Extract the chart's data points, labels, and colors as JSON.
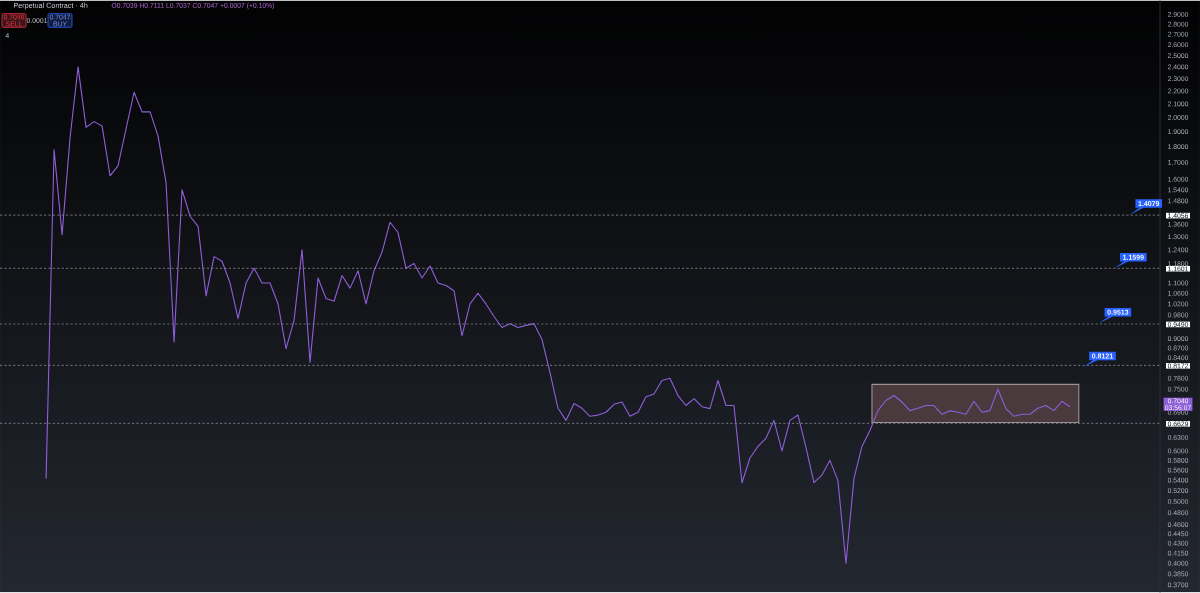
{
  "chart_data": {
    "type": "line",
    "title": "Perpetual Contract · 4h",
    "subtitle": "O0.7039 H0.7111 L0.7037 C0.7047 +0.0007 (+0.10%)",
    "categories": [
      null,
      null,
      null,
      null,
      null,
      null,
      null,
      null,
      null,
      null,
      null,
      null,
      null,
      null,
      null,
      null,
      null,
      null,
      null,
      null,
      null,
      null,
      null,
      null,
      null,
      null,
      null,
      null,
      null,
      null,
      null,
      null,
      null,
      null,
      null,
      null,
      null,
      null,
      null,
      null,
      null,
      null,
      null,
      null,
      null,
      null,
      null,
      null,
      null,
      null,
      null,
      null,
      null,
      null,
      null,
      null,
      null,
      null,
      null,
      null,
      null,
      null,
      null,
      null,
      null,
      null,
      null,
      null,
      null,
      null,
      null,
      null,
      null,
      null,
      null,
      null,
      null,
      null,
      null,
      null,
      null,
      null,
      null,
      null,
      null,
      null,
      null,
      null,
      null,
      null,
      null,
      null,
      null,
      null,
      null,
      null,
      null,
      null,
      null,
      null,
      null,
      null,
      null,
      null,
      null,
      null,
      null,
      null,
      null,
      null,
      null,
      null,
      null,
      null,
      null,
      null,
      null,
      null,
      null,
      null,
      null,
      null,
      null,
      null,
      null,
      null,
      null,
      null,
      null
    ],
    "values": [
      0.543,
      1.78,
      1.31,
      1.86,
      2.4,
      1.93,
      1.97,
      1.94,
      1.62,
      1.68,
      1.92,
      2.19,
      2.04,
      2.04,
      1.87,
      1.58,
      0.889,
      1.54,
      1.4,
      1.35,
      1.05,
      1.21,
      1.19,
      1.1,
      0.968,
      1.1,
      1.16,
      1.1,
      1.1,
      1.02,
      0.868,
      0.961,
      1.24,
      0.826,
      1.12,
      1.04,
      1.03,
      1.13,
      1.08,
      1.15,
      1.02,
      1.15,
      1.23,
      1.37,
      1.32,
      1.16,
      1.18,
      1.12,
      1.17,
      1.1,
      1.09,
      1.07,
      0.91,
      1.02,
      1.06,
      1.02,
      0.975,
      0.937,
      0.95,
      0.937,
      0.944,
      0.95,
      0.897,
      0.796,
      0.7,
      0.67,
      0.712,
      0.7,
      0.68,
      0.683,
      0.69,
      0.71,
      0.716,
      0.68,
      0.69,
      0.73,
      0.737,
      0.774,
      0.78,
      0.733,
      0.707,
      0.725,
      0.704,
      0.699,
      0.774,
      0.707,
      0.707,
      0.535,
      0.585,
      0.61,
      0.628,
      0.67,
      0.6,
      0.67,
      0.683,
      0.608,
      0.535,
      0.55,
      0.58,
      0.539,
      0.4,
      0.543,
      0.61,
      0.646,
      0.694,
      0.72,
      0.733,
      0.716,
      0.694,
      0.7,
      0.707,
      0.707,
      0.685,
      0.694,
      0.69,
      0.685,
      0.718,
      0.69,
      0.694,
      0.75,
      0.699,
      0.68,
      0.685,
      0.685,
      0.7,
      0.707,
      0.694,
      0.718,
      0.704
    ],
    "color": "#8f5fd8",
    "log": true,
    "ylim": [
      0.36,
      3.05
    ],
    "yticks": [
      {
        "value": 2.9,
        "label": "2.9000"
      },
      {
        "value": 2.8,
        "label": "2.8000"
      },
      {
        "value": 2.7,
        "label": "2.7000"
      },
      {
        "value": 2.6,
        "label": "2.6000"
      },
      {
        "value": 2.5,
        "label": "2.5000"
      },
      {
        "value": 2.4,
        "label": "2.4000"
      },
      {
        "value": 2.3,
        "label": "2.3000"
      },
      {
        "value": 2.2,
        "label": "2.2000"
      },
      {
        "value": 2.1,
        "label": "2.1000"
      },
      {
        "value": 2.0,
        "label": "2.0000"
      },
      {
        "value": 1.9,
        "label": "1.9000"
      },
      {
        "value": 1.8,
        "label": "1.8000"
      },
      {
        "value": 1.7,
        "label": "1.7000"
      },
      {
        "value": 1.6,
        "label": "1.6000"
      },
      {
        "value": 1.54,
        "label": "1.5400"
      },
      {
        "value": 1.48,
        "label": "1.4800"
      },
      {
        "value": 1.36,
        "label": "1.3600"
      },
      {
        "value": 1.3,
        "label": "1.3000"
      },
      {
        "value": 1.24,
        "label": "1.2400"
      },
      {
        "value": 1.18,
        "label": "1.1800"
      },
      {
        "value": 1.1,
        "label": "1.1000"
      },
      {
        "value": 1.06,
        "label": "1.0600"
      },
      {
        "value": 1.02,
        "label": "1.0200"
      },
      {
        "value": 0.98,
        "label": "0.9800"
      },
      {
        "value": 0.9,
        "label": "0.9000"
      },
      {
        "value": 0.87,
        "label": "0.8700"
      },
      {
        "value": 0.84,
        "label": "0.8400"
      },
      {
        "value": 0.78,
        "label": "0.7800"
      },
      {
        "value": 0.75,
        "label": "0.7500"
      },
      {
        "value": 0.69,
        "label": "0.6900"
      },
      {
        "value": 0.63,
        "label": "0.6300"
      },
      {
        "value": 0.6,
        "label": "0.6000"
      },
      {
        "value": 0.58,
        "label": "0.5800"
      },
      {
        "value": 0.56,
        "label": "0.5600"
      },
      {
        "value": 0.54,
        "label": "0.5400"
      },
      {
        "value": 0.52,
        "label": "0.5200"
      },
      {
        "value": 0.5,
        "label": "0.5000"
      },
      {
        "value": 0.48,
        "label": "0.4800"
      },
      {
        "value": 0.46,
        "label": "0.4600"
      },
      {
        "value": 0.445,
        "label": "0.4450"
      },
      {
        "value": 0.43,
        "label": "0.4300"
      },
      {
        "value": 0.415,
        "label": "0.4150"
      },
      {
        "value": 0.4,
        "label": "0.4000"
      },
      {
        "value": 0.385,
        "label": "0.3850"
      },
      {
        "value": 0.37,
        "label": "0.3700"
      }
    ],
    "tick_labels": "y",
    "ref_lines": [
      {
        "axis": "y",
        "value": 1.4056,
        "label": "1.4056",
        "color": "#8a8e99",
        "line_style": "dashed"
      },
      {
        "axis": "y",
        "value": 1.1601,
        "label": "1.1601",
        "color": "#8a8e99",
        "line_style": "dashed"
      },
      {
        "axis": "y",
        "value": 0.949,
        "label": "0.9490",
        "color": "#8a8e99",
        "line_style": "dashed"
      },
      {
        "axis": "y",
        "value": 0.8172,
        "label": "0.8172",
        "color": "#8a8e99",
        "line_style": "dashed"
      },
      {
        "axis": "y",
        "value": 0.6629,
        "label": "0.6629",
        "color": "#8a8e99",
        "line_style": "dashed"
      }
    ],
    "bands": [
      {
        "axis": "y",
        "from": 0.665,
        "to": 0.763,
        "color": "#4a3a3e"
      }
    ],
    "annotations": [
      "0.7046",
      "SELL",
      "0.0001",
      "0.7047",
      "BUY",
      "4",
      {
        "text": "1.4079",
        "y": 1.4079
      },
      {
        "text": "1.1599",
        "y": 1.1599
      },
      {
        "text": "0.9513",
        "y": 0.9513
      },
      {
        "text": "0.8121",
        "y": 0.8121
      },
      "0.7040",
      "03:56:07"
    ]
  }
}
